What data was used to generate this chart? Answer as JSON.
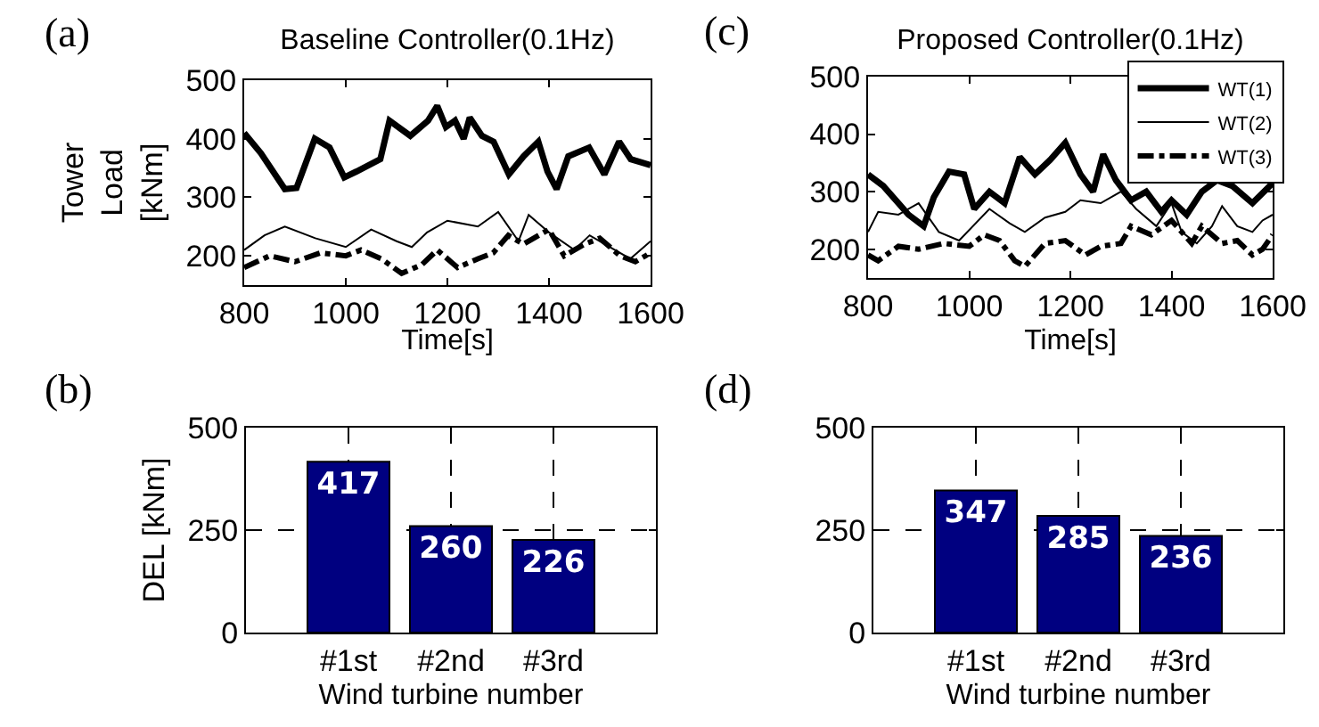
{
  "chart_data": [
    {
      "type": "line",
      "title": "Baseline Controller(0.1Hz)",
      "xlabel": "Time[s]",
      "ylabel": "Tower\nLoad\n[kNm]",
      "annotations": [
        "(a)"
      ],
      "xlim": [
        800,
        1600
      ],
      "xticks": [
        800,
        1000,
        1200,
        1400,
        1600
      ],
      "ylim": [
        150,
        500
      ],
      "yticks": [
        200,
        300,
        400,
        500
      ],
      "series": [
        {
          "color": "#000000",
          "line_style": "solid",
          "x": [
            800,
            833,
            880,
            903,
            939,
            968,
            997,
            1021,
            1068,
            1086,
            1127,
            1162,
            1180,
            1197,
            1215,
            1232,
            1244,
            1268,
            1291,
            1321,
            1350,
            1379,
            1397,
            1415,
            1438,
            1479,
            1509,
            1538,
            1561,
            1600
          ],
          "values": [
            410,
            375,
            314,
            316,
            400,
            385,
            334,
            344,
            365,
            431,
            405,
            431,
            456,
            420,
            431,
            400,
            436,
            405,
            395,
            339,
            370,
            395,
            344,
            314,
            370,
            385,
            339,
            395,
            365,
            355
          ]
        },
        {
          "color": "#000000",
          "line_style": "solid",
          "x": [
            800,
            840,
            880,
            940,
            1000,
            1050,
            1100,
            1130,
            1160,
            1200,
            1260,
            1300,
            1340,
            1360,
            1400,
            1450,
            1480,
            1520,
            1560,
            1600
          ],
          "values": [
            210,
            235,
            250,
            230,
            215,
            245,
            225,
            215,
            240,
            260,
            250,
            275,
            225,
            270,
            240,
            210,
            235,
            215,
            195,
            225
          ]
        },
        {
          "color": "#000000",
          "line_style": "dashed",
          "x": [
            800,
            850,
            900,
            950,
            1000,
            1030,
            1070,
            1110,
            1150,
            1180,
            1220,
            1260,
            1290,
            1320,
            1350,
            1370,
            1400,
            1430,
            1470,
            1500,
            1540,
            1570,
            1600
          ],
          "values": [
            180,
            200,
            190,
            205,
            200,
            210,
            195,
            170,
            185,
            210,
            180,
            195,
            205,
            235,
            220,
            230,
            245,
            200,
            220,
            230,
            200,
            190,
            205
          ]
        }
      ]
    },
    {
      "type": "line",
      "title": "Proposed Controller(0.1Hz)",
      "xlabel": "Time[s]",
      "annotations": [
        "(c)"
      ],
      "xlim": [
        800,
        1600
      ],
      "xticks": [
        800,
        1000,
        1200,
        1400,
        1600
      ],
      "ylim": [
        150,
        500
      ],
      "yticks": [
        200,
        300,
        400,
        500
      ],
      "legend": "top right",
      "series": [
        {
          "name": "WT(1)",
          "color": "#000000",
          "line_style": "solid",
          "x": [
            800,
            830,
            880,
            910,
            930,
            960,
            990,
            1010,
            1040,
            1070,
            1100,
            1130,
            1160,
            1190,
            1220,
            1245,
            1265,
            1290,
            1320,
            1350,
            1380,
            1400,
            1430,
            1460,
            1490,
            1520,
            1560,
            1600
          ],
          "values": [
            330,
            310,
            260,
            240,
            290,
            335,
            330,
            270,
            300,
            280,
            360,
            330,
            355,
            385,
            330,
            300,
            365,
            320,
            285,
            300,
            265,
            285,
            260,
            300,
            320,
            310,
            280,
            315
          ]
        },
        {
          "name": "WT(2)",
          "color": "#000000",
          "line_style": "solid",
          "x": [
            800,
            820,
            860,
            900,
            940,
            980,
            1040,
            1080,
            1110,
            1150,
            1190,
            1220,
            1260,
            1300,
            1330,
            1370,
            1400,
            1420,
            1450,
            1480,
            1500,
            1530,
            1560,
            1580,
            1600
          ],
          "values": [
            230,
            265,
            260,
            280,
            230,
            215,
            270,
            245,
            230,
            255,
            265,
            285,
            280,
            300,
            270,
            240,
            280,
            230,
            210,
            240,
            275,
            240,
            230,
            250,
            260
          ]
        },
        {
          "name": "WT(3)",
          "color": "#000000",
          "line_style": "dashed",
          "x": [
            800,
            820,
            860,
            900,
            950,
            1000,
            1030,
            1060,
            1090,
            1110,
            1150,
            1190,
            1230,
            1260,
            1300,
            1320,
            1360,
            1400,
            1440,
            1460,
            1500,
            1530,
            1560,
            1580,
            1600
          ],
          "values": [
            190,
            180,
            205,
            200,
            210,
            205,
            225,
            215,
            180,
            170,
            210,
            215,
            190,
            205,
            210,
            240,
            225,
            250,
            210,
            240,
            210,
            215,
            190,
            200,
            225
          ]
        }
      ]
    },
    {
      "type": "bar",
      "xlabel": "Wind turbine number",
      "ylabel": "DEL [kNm]",
      "annotations": [
        "(b)"
      ],
      "categories": [
        "#1st",
        "#2nd",
        "#3rd"
      ],
      "values": [
        417,
        260,
        226
      ],
      "color": "#000080",
      "data_labels": true,
      "ylim": [
        0,
        500
      ],
      "yticks": [
        0,
        250,
        500
      ],
      "grid": true
    },
    {
      "type": "bar",
      "xlabel": "Wind turbine number",
      "annotations": [
        "(d)"
      ],
      "categories": [
        "#1st",
        "#2nd",
        "#3rd"
      ],
      "values": [
        347,
        285,
        236
      ],
      "color": "#000080",
      "data_labels": true,
      "ylim": [
        0,
        500
      ],
      "yticks": [
        0,
        250,
        500
      ],
      "grid": true
    }
  ]
}
